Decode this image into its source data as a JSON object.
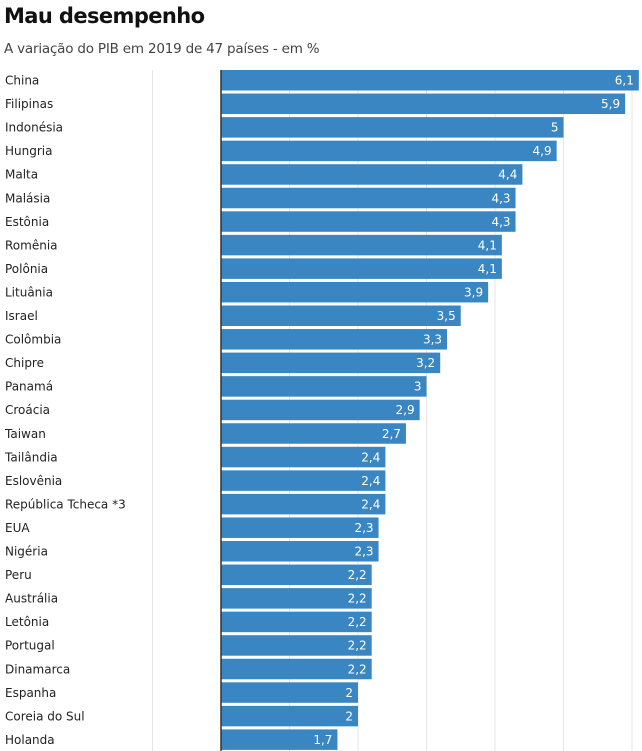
{
  "chart_data": {
    "type": "bar",
    "orientation": "horizontal",
    "title": "Mau desempenho",
    "subtitle": "A variação do PIB em 2019 de 47 países - em %",
    "xlabel": "",
    "ylabel": "",
    "xlim": [
      -1,
      6.1
    ],
    "grid": true,
    "bar_color": "#3a86c2",
    "categories": [
      "China",
      "Filipinas",
      "Indonésia",
      "Hungria",
      "Malta",
      "Malásia",
      "Estônia",
      "Romênia",
      "Polônia",
      "Lituânia",
      "Israel",
      "Colômbia",
      "Chipre",
      "Panamá",
      "Croácia",
      "Taiwan",
      "Tailândia",
      "Eslovênia",
      "República Tcheca *3",
      "EUA",
      "Nigéria",
      "Peru",
      "Austrália",
      "Letônia",
      "Portugal",
      "Dinamarca",
      "Espanha",
      "Coreia do Sul",
      "Holanda"
    ],
    "values": [
      6.1,
      5.9,
      5,
      4.9,
      4.4,
      4.3,
      4.3,
      4.1,
      4.1,
      3.9,
      3.5,
      3.3,
      3.2,
      3,
      2.9,
      2.7,
      2.4,
      2.4,
      2.4,
      2.3,
      2.3,
      2.2,
      2.2,
      2.2,
      2.2,
      2.2,
      2,
      2,
      1.7
    ],
    "value_labels": [
      "6,1",
      "5,9",
      "5",
      "4,9",
      "4,4",
      "4,3",
      "4,3",
      "4,1",
      "4,1",
      "3,9",
      "3,5",
      "3,3",
      "3,2",
      "3",
      "2,9",
      "2,7",
      "2,4",
      "2,4",
      "2,4",
      "2,3",
      "2,3",
      "2,2",
      "2,2",
      "2,2",
      "2,2",
      "2,2",
      "2",
      "2",
      "1,7"
    ],
    "gridlines": [
      -1,
      0,
      1,
      2,
      3,
      4,
      5,
      6
    ]
  }
}
